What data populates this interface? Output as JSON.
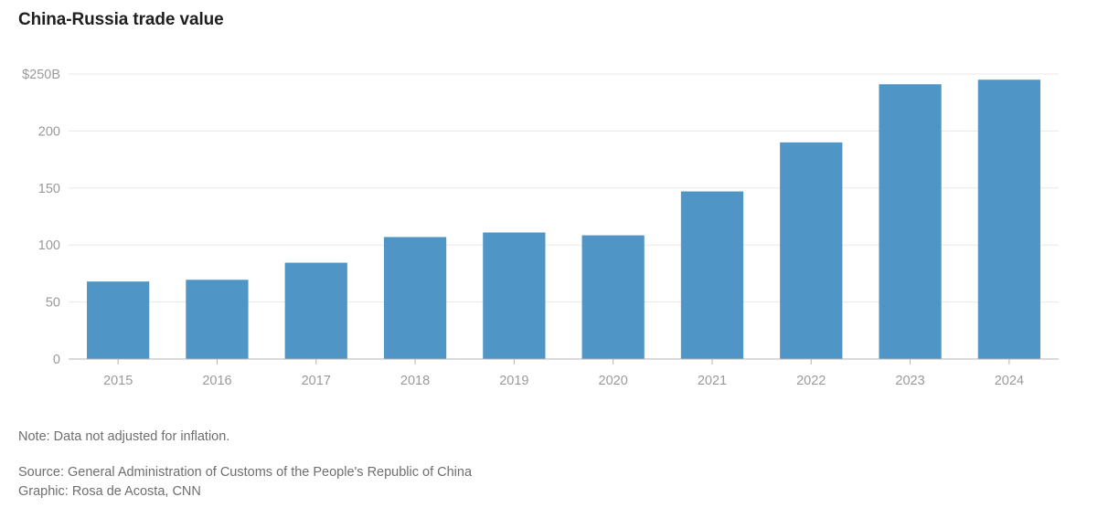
{
  "chart_data": {
    "type": "bar",
    "title": "China-Russia trade value",
    "xlabel": "",
    "ylabel": "",
    "categories": [
      "2015",
      "2016",
      "2017",
      "2018",
      "2019",
      "2020",
      "2021",
      "2022",
      "2023",
      "2024"
    ],
    "values": [
      68,
      69.5,
      84.5,
      107,
      111,
      108.5,
      147,
      190,
      241,
      245
    ],
    "ylim": [
      0,
      250
    ],
    "yticks": [
      0,
      50,
      100,
      150,
      200,
      250
    ],
    "ytick_labels": [
      "0",
      "50",
      "100",
      "150",
      "200",
      "$250B"
    ],
    "grid": true,
    "bar_color": "#4f95c5"
  },
  "footer": {
    "note": "Note: Data not adjusted for inflation.",
    "source": "Source: General Administration of Customs of the People's Republic of China",
    "credit": "Graphic: Rosa de Acosta, CNN"
  }
}
